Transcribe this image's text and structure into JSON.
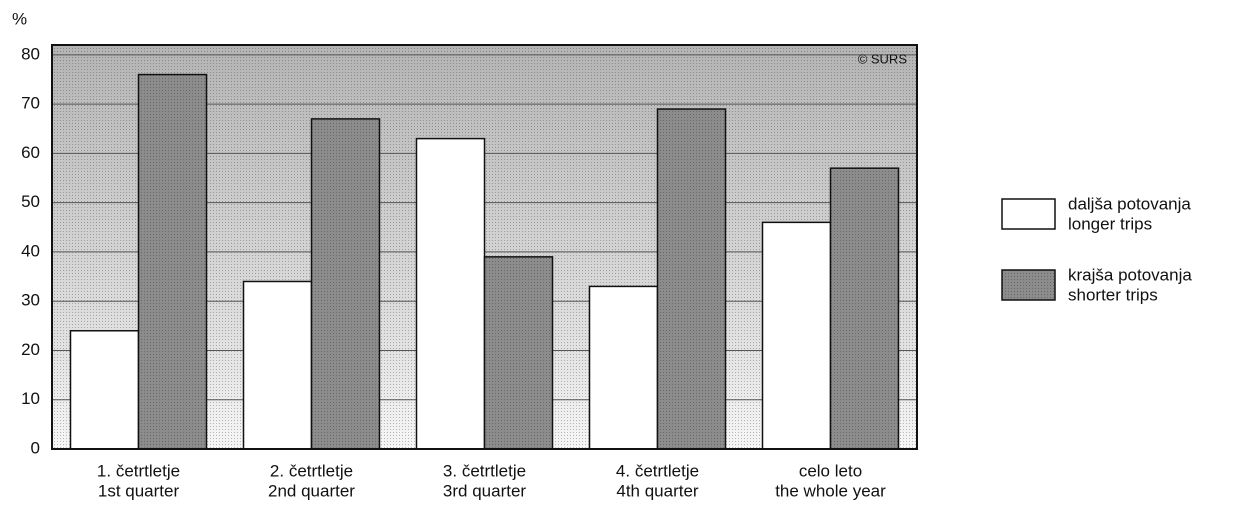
{
  "chart_data": {
    "type": "bar",
    "y_label": "%",
    "annotation": "© SURS",
    "categories": [
      [
        "1. četrtletje",
        "1st quarter"
      ],
      [
        "2. četrtletje",
        "2nd quarter"
      ],
      [
        "3. četrtletje",
        "3rd quarter"
      ],
      [
        "4. četrtletje",
        "4th quarter"
      ],
      [
        "celo leto",
        "the whole year"
      ]
    ],
    "series": [
      {
        "name": [
          "daljša potovanja",
          "longer trips"
        ],
        "color": "#ffffff",
        "values": [
          24,
          34,
          63,
          33,
          46
        ]
      },
      {
        "name": [
          "krajša potovanja",
          "shorter trips"
        ],
        "color": "#8c8c8c",
        "values": [
          76,
          67,
          39,
          69,
          57
        ]
      }
    ],
    "ylim": [
      0,
      82
    ],
    "yticks": [
      0,
      10,
      20,
      30,
      40,
      50,
      60,
      70,
      80
    ],
    "grid": true
  }
}
